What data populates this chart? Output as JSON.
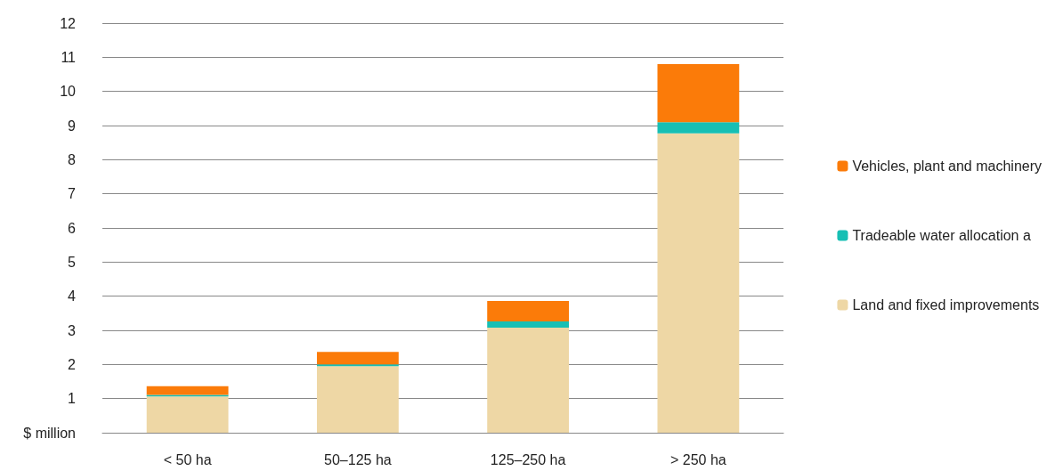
{
  "chart_data": {
    "type": "bar",
    "stacked": true,
    "categories": [
      "< 50 ha",
      "50–125 ha",
      "125–250 ha",
      "> 250 ha"
    ],
    "series": [
      {
        "name": "Land and fixed improvements",
        "color": "#eed7a5",
        "values": [
          1.06,
          1.95,
          3.08,
          8.77
        ]
      },
      {
        "name": "Tradeable water allocation a",
        "color": "#17bfb4",
        "values": [
          0.05,
          0.05,
          0.18,
          0.33
        ]
      },
      {
        "name": "Vehicles, plant and machinery",
        "color": "#fb7b09",
        "values": [
          0.25,
          0.37,
          0.6,
          1.7
        ]
      }
    ],
    "ylim": [
      0,
      12
    ],
    "yticks": [
      {
        "value": 0,
        "label": "$ million"
      },
      1,
      2,
      3,
      4,
      5,
      6,
      7,
      8,
      9,
      10,
      11,
      12
    ],
    "grid": "y",
    "legend": "right"
  }
}
